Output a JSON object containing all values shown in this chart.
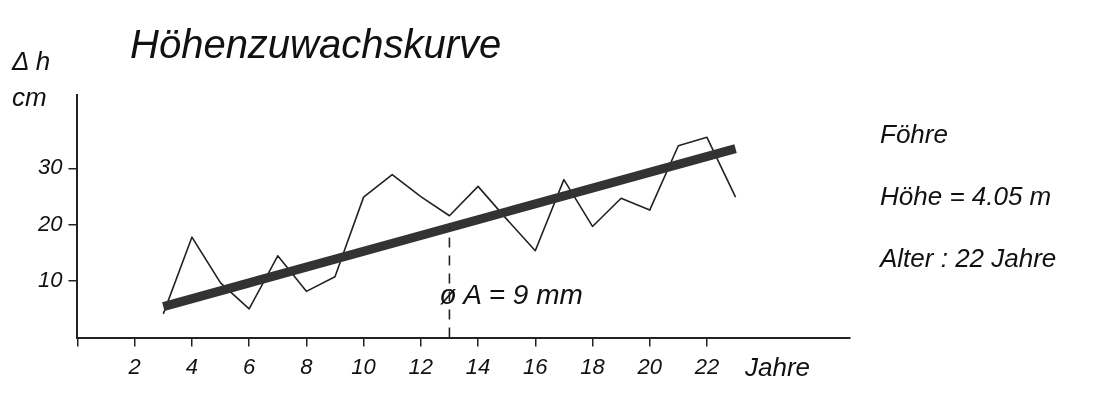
{
  "chart_data": {
    "type": "line",
    "title": "Höhenzuwachskurve",
    "ylabel": "Δ h\ncm",
    "xlabel": "Jahre",
    "xlim": [
      0,
      27
    ],
    "xticks": [
      {
        "value": 0,
        "label": null
      },
      2,
      4,
      6,
      8,
      10,
      12,
      14,
      16,
      18,
      20,
      22
    ],
    "ylim": [
      0,
      43
    ],
    "yticks": [
      10,
      20,
      30
    ],
    "grid": false,
    "legend": false,
    "marker": "none",
    "line_style": "solid",
    "series": [
      {
        "color": "#222222",
        "x": [
          3,
          4,
          5,
          6,
          7,
          8,
          9,
          10,
          11,
          12,
          13,
          14,
          15,
          16,
          17,
          18,
          19,
          20,
          21,
          22,
          23
        ],
        "values": [
          4.2,
          17.8,
          9.7,
          5.1,
          14.5,
          8.2,
          10.8,
          24.9,
          28.9,
          25,
          21.6,
          26.8,
          21,
          15.4,
          28,
          19.7,
          24.7,
          22.6,
          34,
          35.5,
          24.9
        ]
      },
      {
        "color": "#333333",
        "x": [
          3,
          23
        ],
        "values": [
          5.5,
          33.5
        ]
      }
    ],
    "ref_lines": [
      {
        "axis": "x",
        "value": 13,
        "line_style": "dashed",
        "color": "#222222"
      }
    ],
    "annotations": [
      {
        "text": "ø A = 9 mm",
        "x": 13,
        "y": 6
      },
      "Föhre",
      "Höhe = 4.05 m",
      "Alter : 22 Jahre"
    ]
  }
}
